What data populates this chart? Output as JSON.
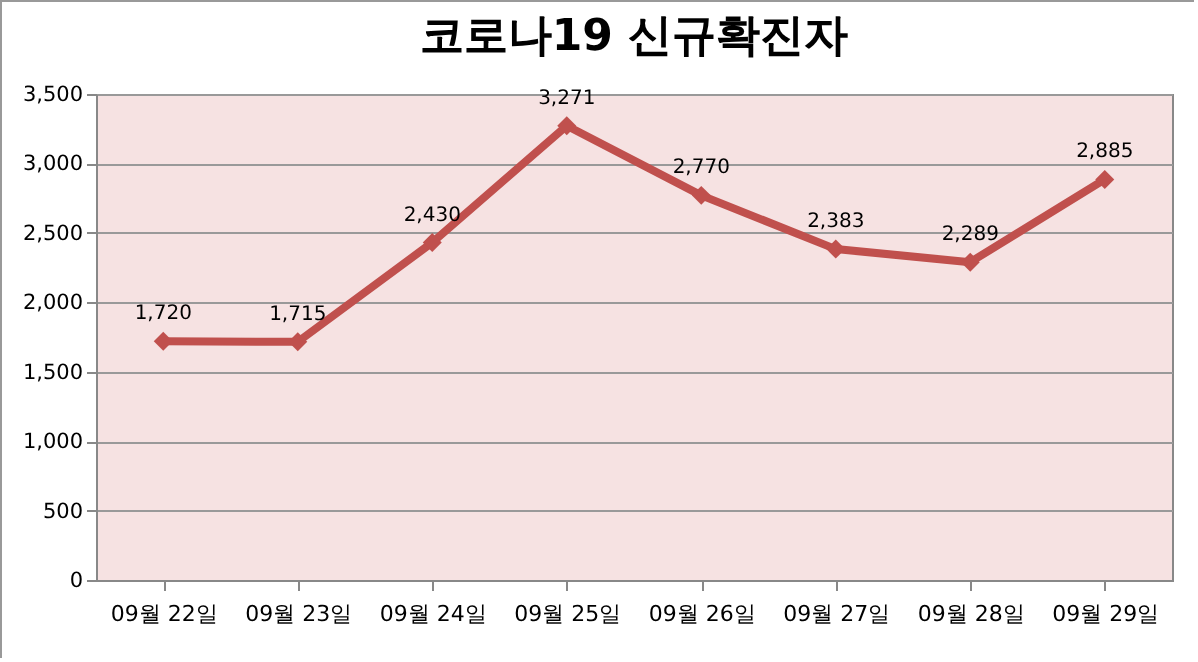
{
  "chart_data": {
    "type": "line",
    "title": "코로나19 신규확진자",
    "categories": [
      "09월 22일",
      "09월 23일",
      "09월 24일",
      "09월 25일",
      "09월 26일",
      "09월 27일",
      "09월 28일",
      "09월 29일"
    ],
    "series": [
      {
        "color": "#c0504d",
        "values": [
          1720,
          1715,
          2430,
          3271,
          2770,
          2383,
          2289,
          2885
        ],
        "value_labels": [
          "1,720",
          "1,715",
          "2,430",
          "3,271",
          "2,770",
          "2,383",
          "2,289",
          "2,885"
        ]
      }
    ],
    "ylim": [
      0,
      3500
    ],
    "yticks": [
      0,
      {
        "value": 500,
        "label": "500"
      },
      {
        "value": 1000,
        "label": "1,000"
      },
      {
        "value": 1500,
        "label": "1,500"
      },
      {
        "value": 2000,
        "label": "2,000"
      },
      {
        "value": 2500,
        "label": "2,500"
      },
      {
        "value": 3000,
        "label": "3,000"
      },
      {
        "value": 3500,
        "label": "3,500"
      }
    ],
    "grid": "y",
    "marker": "diamond",
    "line_style": "solid"
  }
}
